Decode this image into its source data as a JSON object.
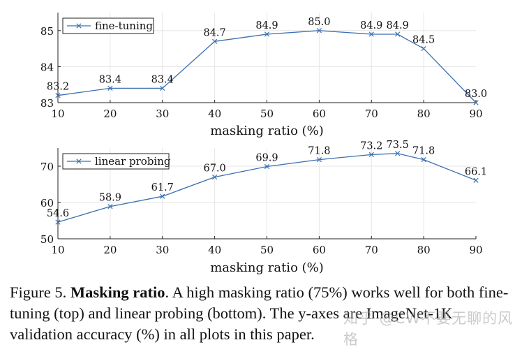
{
  "chart_data": [
    {
      "type": "line",
      "xlabel": "masking ratio (%)",
      "ylabel": "",
      "x": [
        10,
        20,
        30,
        40,
        50,
        60,
        70,
        75,
        80,
        90
      ],
      "xticks": [
        10,
        20,
        30,
        40,
        50,
        60,
        70,
        80,
        90
      ],
      "xlim": [
        10,
        90
      ],
      "ylim": [
        83,
        85.5
      ],
      "yticks": [
        83,
        84,
        85
      ],
      "grid": true,
      "legend_position": "top-left",
      "series": [
        {
          "name": "fine-tuning",
          "color": "#3a6fb0",
          "values": [
            83.2,
            83.4,
            83.4,
            84.7,
            84.9,
            85.0,
            84.9,
            84.9,
            84.5,
            83.0
          ],
          "labels": [
            "83.2",
            "83.4",
            "83.4",
            "84.7",
            "84.9",
            "85.0",
            "84.9",
            "84.9",
            "84.5",
            "83.0"
          ]
        }
      ]
    },
    {
      "type": "line",
      "xlabel": "masking ratio (%)",
      "ylabel": "",
      "x": [
        10,
        20,
        30,
        40,
        50,
        60,
        70,
        75,
        80,
        90
      ],
      "xticks": [
        10,
        20,
        30,
        40,
        50,
        60,
        70,
        80,
        90
      ],
      "xlim": [
        10,
        90
      ],
      "ylim": [
        50,
        75
      ],
      "yticks": [
        50,
        60,
        70
      ],
      "grid": true,
      "legend_position": "top-left",
      "series": [
        {
          "name": "linear probing",
          "color": "#3a6fb0",
          "values": [
            54.6,
            58.9,
            61.7,
            67.0,
            69.9,
            71.8,
            73.2,
            73.5,
            71.8,
            66.1
          ],
          "labels": [
            "54.6",
            "58.9",
            "61.7",
            "67.0",
            "69.9",
            "71.8",
            "73.2",
            "73.5",
            "71.8",
            "66.1"
          ]
        }
      ]
    }
  ],
  "caption": {
    "prefix": "Figure 5. ",
    "bold": "Masking ratio",
    "text": ". A high masking ratio (75%) works well for both fine-tuning (top) and linear probing (bottom). The y-axes are ImageNet-1K validation accuracy (%) in all plots in this paper."
  },
  "watermark": "知乎 @CW不要无聊的风格"
}
